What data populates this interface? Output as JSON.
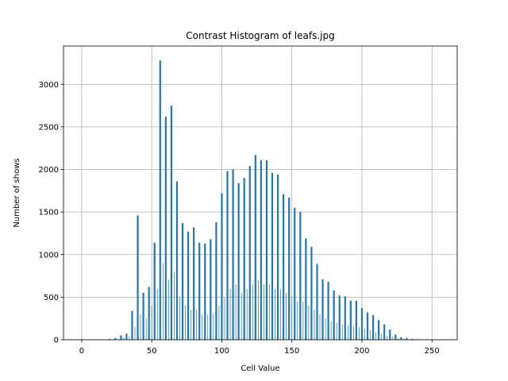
{
  "chart_data": {
    "type": "bar",
    "title": "Contrast Histogram of leafs.jpg",
    "xlabel": "Cell Value",
    "ylabel": "Number of shows",
    "xlim": [
      -13,
      268
    ],
    "ylim": [
      0,
      3450
    ],
    "xticks": [
      0,
      50,
      100,
      150,
      200,
      250
    ],
    "yticks": [
      0,
      500,
      1000,
      1500,
      2000,
      2500,
      3000
    ],
    "grid": true,
    "bar_color": "#1f77b4",
    "x": [
      20,
      24,
      28,
      32,
      36,
      40,
      44,
      48,
      52,
      56,
      60,
      64,
      68,
      72,
      76,
      80,
      84,
      88,
      92,
      96,
      100,
      104,
      108,
      112,
      116,
      120,
      124,
      128,
      132,
      136,
      140,
      144,
      148,
      152,
      156,
      160,
      164,
      168,
      172,
      176,
      180,
      184,
      188,
      192,
      196,
      200,
      204,
      208,
      212,
      216,
      220,
      224,
      228,
      232,
      236,
      240
    ],
    "values": [
      10,
      20,
      50,
      70,
      340,
      1460,
      550,
      620,
      1140,
      3280,
      2620,
      2750,
      1860,
      1370,
      1270,
      1320,
      1140,
      1130,
      1180,
      1380,
      1720,
      1980,
      2000,
      1840,
      1900,
      2040,
      2170,
      2110,
      2110,
      1960,
      1940,
      1710,
      1670,
      1550,
      1500,
      1190,
      1090,
      890,
      710,
      680,
      580,
      520,
      510,
      460,
      460,
      370,
      320,
      290,
      230,
      180,
      120,
      60,
      30,
      20,
      10,
      5
    ],
    "minor_x": [
      22,
      26,
      30,
      34,
      38,
      42,
      46,
      50,
      54,
      58,
      62,
      66,
      70,
      74,
      78,
      82,
      86,
      90,
      94,
      98,
      102,
      106,
      110,
      114,
      118,
      122,
      126,
      130,
      134,
      138,
      142,
      146,
      150,
      154,
      158,
      162,
      166,
      170,
      174,
      178,
      182,
      186,
      190,
      194,
      198,
      202,
      206,
      210,
      214,
      218,
      222,
      226,
      230,
      234,
      238
    ],
    "minor_values": [
      5,
      10,
      30,
      40,
      150,
      300,
      250,
      400,
      600,
      900,
      700,
      800,
      500,
      400,
      350,
      350,
      300,
      300,
      300,
      400,
      500,
      600,
      650,
      550,
      600,
      650,
      700,
      650,
      650,
      600,
      600,
      550,
      500,
      450,
      450,
      400,
      350,
      300,
      250,
      220,
      200,
      180,
      170,
      160,
      150,
      130,
      110,
      90,
      70,
      50,
      40,
      20,
      10,
      5,
      3
    ]
  }
}
